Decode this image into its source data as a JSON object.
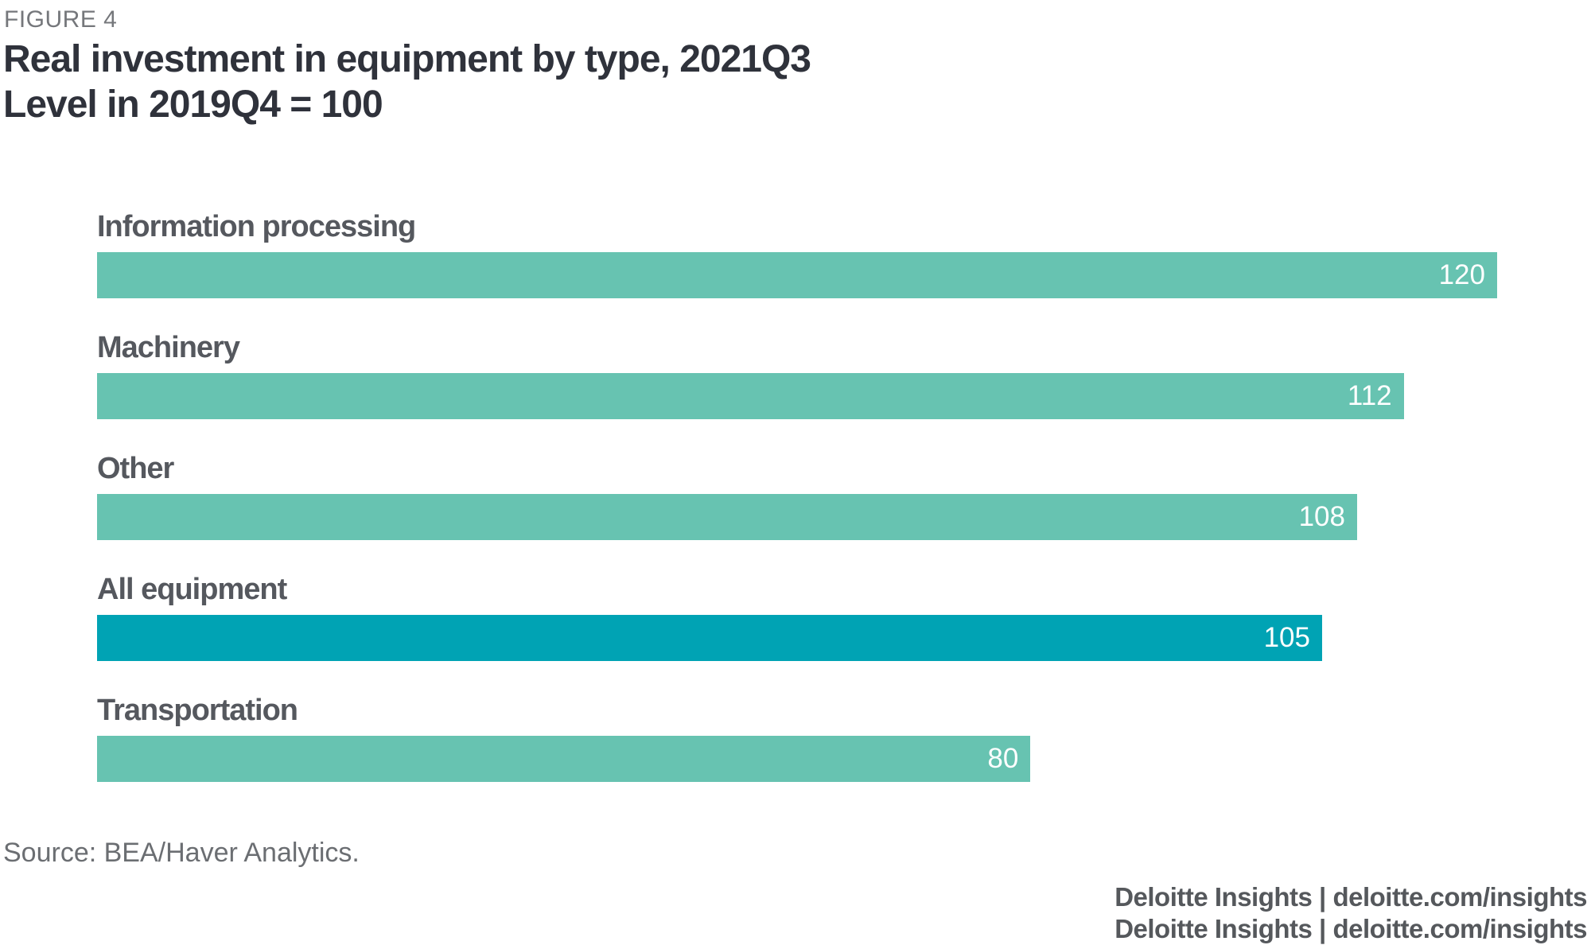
{
  "header": {
    "figure_label": "FIGURE 4",
    "title_line1": "Real investment in equipment by type, 2021Q3",
    "title_line2": "Level in 2019Q4 = 100"
  },
  "chart_data": {
    "type": "bar",
    "orientation": "horizontal",
    "title": "Real investment in equipment by type, 2021Q3",
    "subtitle": "Level in 2019Q4 = 100",
    "categories": [
      "Information processing",
      "Machinery",
      "Other",
      "All equipment",
      "Transportation"
    ],
    "values": [
      120,
      112,
      108,
      105,
      80
    ],
    "xlim": [
      0,
      120
    ],
    "value_labels": "inside-end",
    "highlight_category": "All equipment",
    "colors": {
      "bar_default": "#67C3B1",
      "bar_highlight": "#00A3B4",
      "value_label": "#FFFFFF",
      "category_label": "#55585E"
    },
    "grid": false,
    "legend": false
  },
  "footer": {
    "source": "Source: BEA/Haver Analytics.",
    "branding": "Deloitte Insights | deloitte.com/insights"
  }
}
